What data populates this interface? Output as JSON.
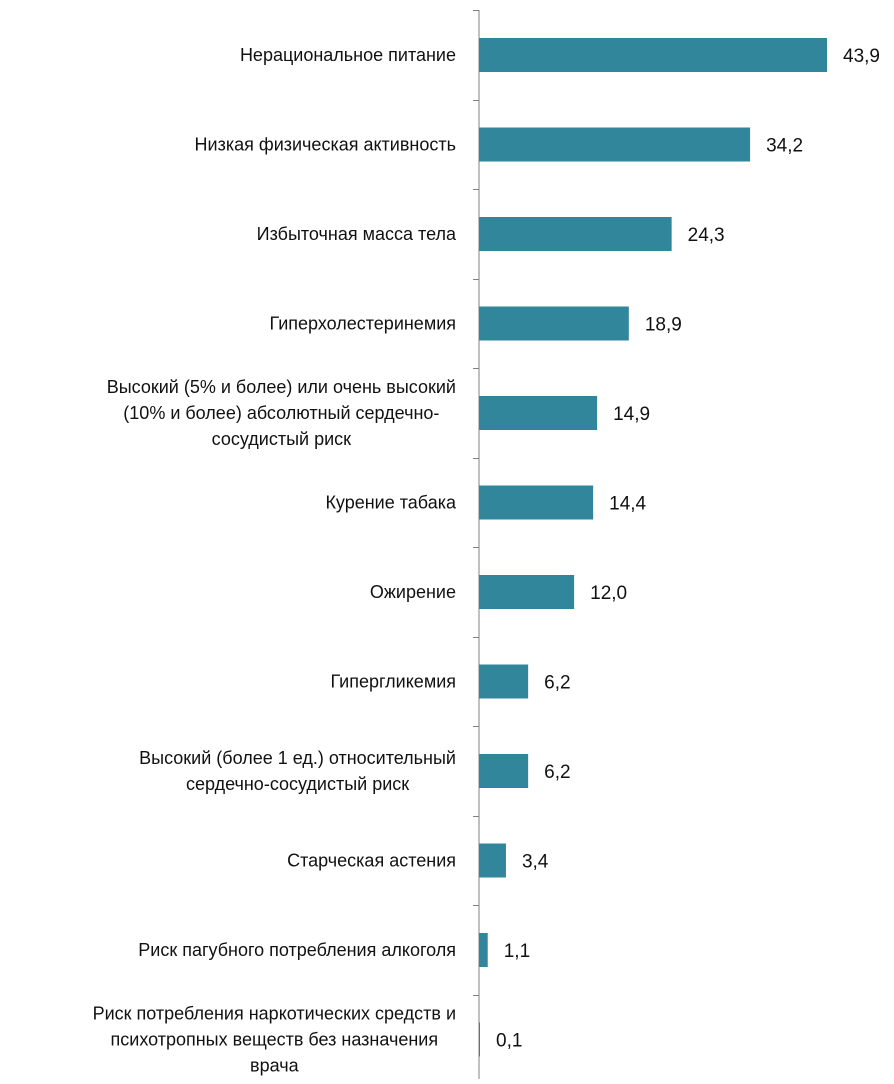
{
  "chart_data": {
    "type": "bar",
    "orientation": "horizontal",
    "categories": [
      "Нерациональное питание",
      "Низкая физическая активность",
      "Избыточная масса тела",
      "Гиперхолестеринемия",
      "Высокий (5% и более) или очень высокий (10% и более) абсолютный сердечно-сосудистый риск",
      "Курение табака",
      "Ожирение",
      "Гипергликемия",
      "Высокий (более 1 ед.) относительный сердечно-сосудистый риск",
      "Старческая астения",
      "Риск пагубного потребления алкоголя",
      "Риск потребления наркотических средств и психотропных веществ без назначения врача"
    ],
    "category_lines": [
      [
        "Нерациональное питание"
      ],
      [
        "Низкая физическая активность"
      ],
      [
        "Избыточная масса тела"
      ],
      [
        "Гиперхолестеринемия"
      ],
      [
        "Высокий (5% и более) или очень высокий",
        "(10% и более) абсолютный сердечно-",
        "сосудистый риск"
      ],
      [
        "Курение табака"
      ],
      [
        "Ожирение"
      ],
      [
        "Гипергликемия"
      ],
      [
        "Высокий (более 1 ед.) относительный",
        "сердечно-сосудистый риск"
      ],
      [
        "Старческая астения"
      ],
      [
        "Риск пагубного потребления алкоголя"
      ],
      [
        "Риск потребления наркотических средств и",
        "психотропных веществ без назначения",
        "врача"
      ]
    ],
    "values": [
      43.9,
      34.2,
      24.3,
      18.9,
      14.9,
      14.4,
      12.0,
      6.2,
      6.2,
      3.4,
      1.1,
      0.1
    ],
    "data_labels": [
      "43,9",
      "34,2",
      "24,3",
      "18,9",
      "14,9",
      "14,4",
      "12,0",
      "6,2",
      "6,2",
      "3,4",
      "1,1",
      "0,1"
    ],
    "title": "",
    "xlabel": "",
    "ylabel": "",
    "xlim": [
      0,
      45
    ],
    "grid": false,
    "legend": "none",
    "colors": {
      "bar": "#31869b",
      "axis": "#808080",
      "text": "#111111"
    }
  }
}
